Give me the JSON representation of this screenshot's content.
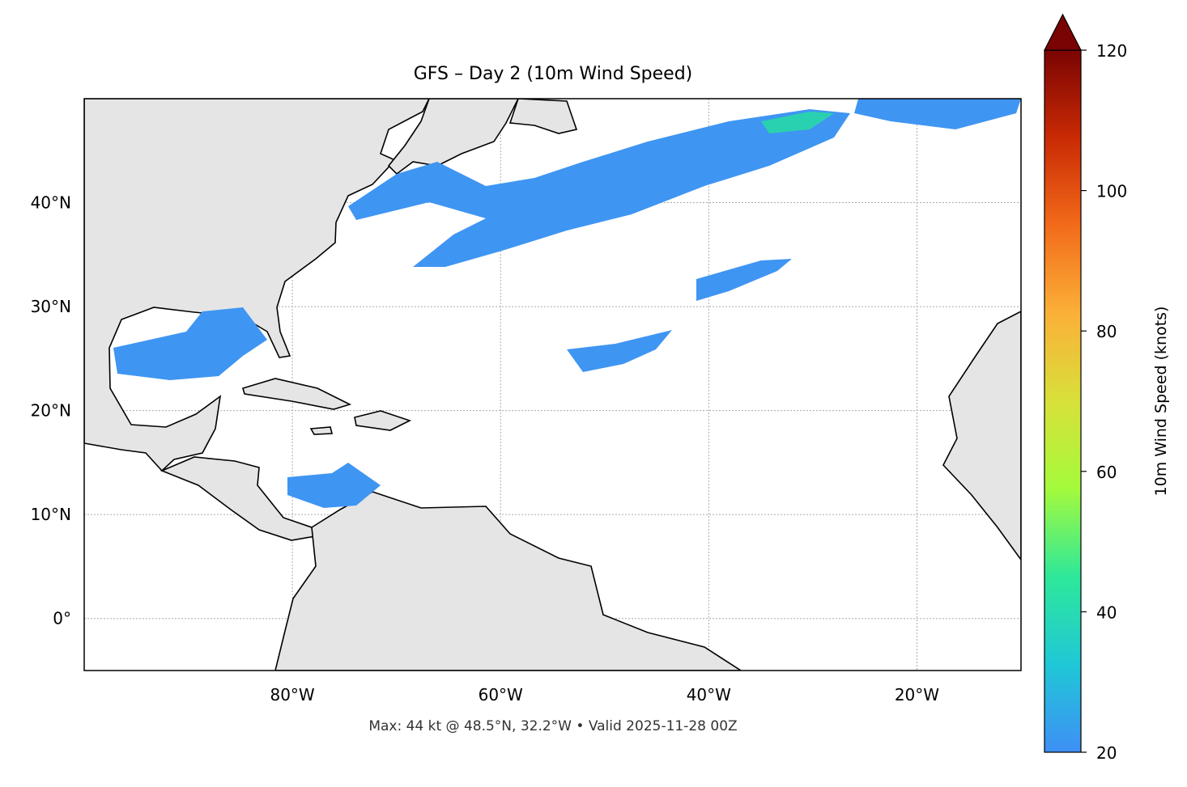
{
  "title": "GFS – Day 2 (10m Wind Speed)",
  "footer": "Max: 44 kt @ 48.5°N, 32.2°W • Valid 2025-11-28 00Z",
  "map": {
    "xlim": [
      -100,
      -10
    ],
    "ylim": [
      -5,
      50
    ],
    "xticks": [
      {
        "value": -80,
        "label": "80°W"
      },
      {
        "value": -60,
        "label": "60°W"
      },
      {
        "value": -40,
        "label": "40°W"
      },
      {
        "value": -20,
        "label": "20°W"
      }
    ],
    "yticks": [
      {
        "value": 0,
        "label": "0°"
      },
      {
        "value": 10,
        "label": "10°N"
      },
      {
        "value": 20,
        "label": "20°N"
      },
      {
        "value": 30,
        "label": "30°N"
      },
      {
        "value": 40,
        "label": "40°N"
      }
    ],
    "grid": true
  },
  "colorbar": {
    "label": "10m Wind Speed (knots)",
    "lim": [
      20,
      120
    ],
    "ticks": [
      20,
      40,
      60,
      80,
      100,
      120
    ],
    "colors": [
      "#3f8ff5",
      "#1fc8d6",
      "#2ee89a",
      "#a4fa3c",
      "#d8e03a",
      "#fbb038",
      "#f26b1a",
      "#c92a04",
      "#7a0403"
    ],
    "extend": "max"
  }
}
